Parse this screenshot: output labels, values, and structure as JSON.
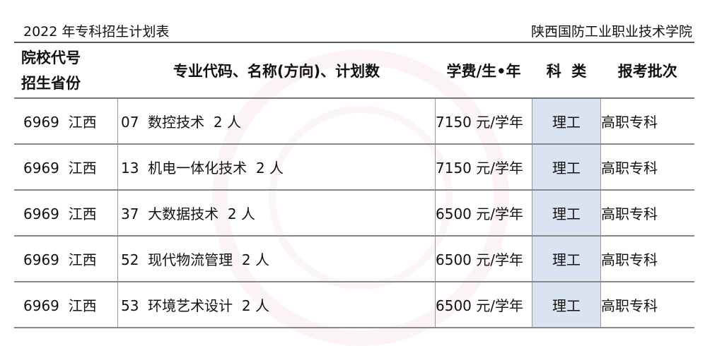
{
  "header": {
    "title": "2022 年专科招生计划表",
    "school": "陕西国防工业职业技术学院"
  },
  "columns": {
    "code_line1": "院校代号",
    "code_line2": "招生省份",
    "major": "专业代码、名称(方向)、计划数",
    "fee": "学费/生•年",
    "category": "科  类",
    "batch": "报考批次"
  },
  "rows": [
    {
      "code": "6969  江西",
      "major": "07  数控技术  2 人",
      "fee": "7150 元/学年",
      "category": "理工",
      "batch": "高职专科"
    },
    {
      "code": "6969  江西",
      "major": "13  机电一体化技术  2 人",
      "fee": "7150 元/学年",
      "category": "理工",
      "batch": "高职专科"
    },
    {
      "code": "6969  江西",
      "major": "37  大数据技术  2 人",
      "fee": "6500 元/学年",
      "category": "理工",
      "batch": "高职专科"
    },
    {
      "code": "6969  江西",
      "major": "52  现代物流管理  2 人",
      "fee": "6500 元/学年",
      "category": "理工",
      "batch": "高职专科"
    },
    {
      "code": "6969  江西",
      "major": "53  环境艺术设计  2 人",
      "fee": "6500 元/学年",
      "category": "理工",
      "batch": "高职专科"
    }
  ]
}
